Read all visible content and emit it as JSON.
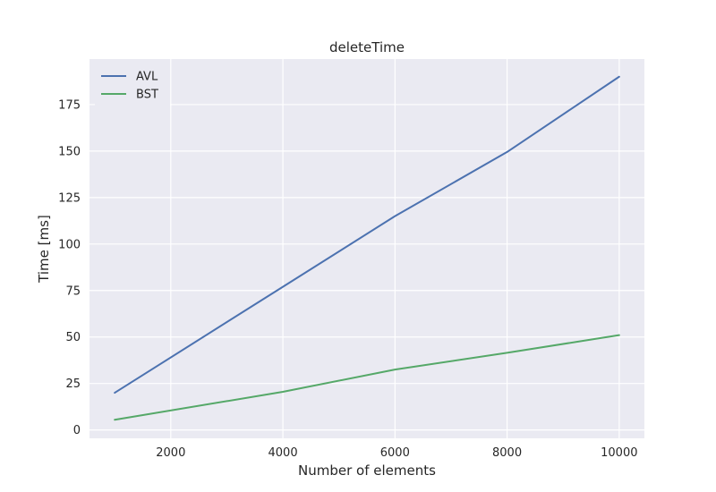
{
  "chart_data": {
    "type": "line",
    "title": "deleteTime",
    "xlabel": "Number of elements",
    "ylabel": "Time [ms]",
    "x": [
      1000,
      4000,
      6000,
      8000,
      10000
    ],
    "xlim": [
      550,
      10450
    ],
    "ylim": [
      -4.5,
      199.5
    ],
    "xticks": [
      2000,
      4000,
      6000,
      8000,
      10000
    ],
    "yticks": [
      0,
      25,
      50,
      75,
      100,
      125,
      150,
      175
    ],
    "grid": true,
    "legend_position": "top-left",
    "series": [
      {
        "name": "AVL",
        "color": "#4c72b0",
        "values": [
          20,
          77,
          115,
          149.5,
          190
        ]
      },
      {
        "name": "BST",
        "color": "#55a868",
        "values": [
          5.5,
          20.5,
          32.5,
          41.5,
          51
        ]
      }
    ],
    "background_color": "#eaeaf2",
    "grid_color": "#ffffff"
  }
}
